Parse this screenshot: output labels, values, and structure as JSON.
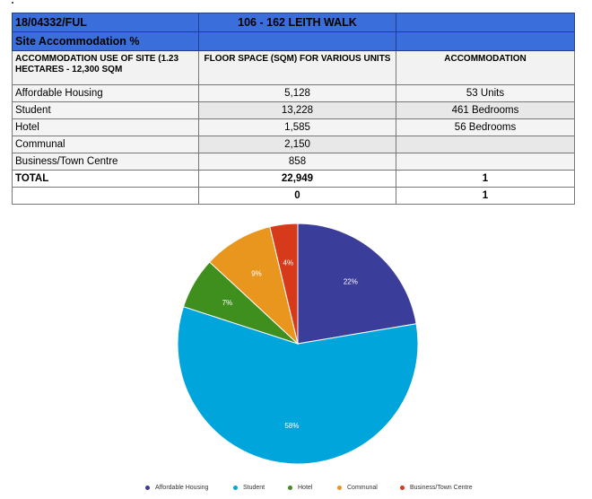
{
  "table": {
    "ref": "18/04332/FUL",
    "address": "106 - 162 LEITH WALK",
    "section_title": "Site Accommodation %",
    "headers": [
      "ACCOMMODATION USE OF SITE (1.23 HECTARES - 12,300 SQM",
      "FLOOR SPACE (SQM) FOR VARIOUS UNITS",
      "ACCOMMODATION"
    ],
    "rows": [
      {
        "use": "Affordable Housing",
        "floor": "5,128",
        "acc": "53 Units"
      },
      {
        "use": "Student",
        "floor": "13,228",
        "acc": "461 Bedrooms"
      },
      {
        "use": "Hotel",
        "floor": "1,585",
        "acc": "56 Bedrooms"
      },
      {
        "use": "Communal",
        "floor": "2,150",
        "acc": ""
      },
      {
        "use": "Business/Town Centre",
        "floor": "858",
        "acc": ""
      }
    ],
    "total": {
      "label": "TOTAL",
      "floor": "22,949",
      "acc": "1"
    },
    "extra": {
      "label": "",
      "floor": "0",
      "acc": "1"
    }
  },
  "chart_data": {
    "type": "pie",
    "categories": [
      "Affordable Housing",
      "Student",
      "Hotel",
      "Communal",
      "Business/Town Centre"
    ],
    "values": [
      5128,
      13228,
      1585,
      2150,
      858
    ],
    "labels": [
      "22%",
      "58%",
      "7%",
      "9%",
      "4%"
    ],
    "colors": [
      "#3b3d9a",
      "#00a6db",
      "#3f8f1f",
      "#e8961e",
      "#d63a1a"
    ],
    "legend_position": "bottom"
  }
}
